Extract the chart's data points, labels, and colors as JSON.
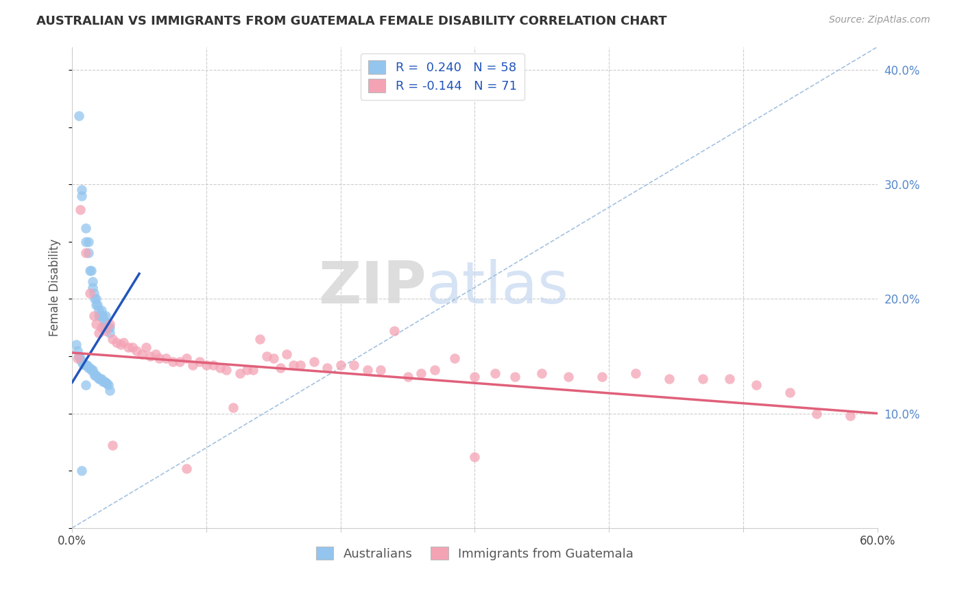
{
  "title": "AUSTRALIAN VS IMMIGRANTS FROM GUATEMALA FEMALE DISABILITY CORRELATION CHART",
  "source": "Source: ZipAtlas.com",
  "ylabel": "Female Disability",
  "watermark_zip": "ZIP",
  "watermark_atlas": "atlas",
  "xlim": [
    0.0,
    0.6
  ],
  "ylim": [
    0.0,
    0.42
  ],
  "blue_color": "#93C5EE",
  "pink_color": "#F4A3B5",
  "blue_line_color": "#2255BB",
  "pink_line_color": "#E0607A",
  "diagonal_color": "#99BBDD",
  "background_color": "#FFFFFF",
  "grid_color": "#CCCCCC",
  "r_blue": 0.24,
  "n_blue": 58,
  "r_pink": -0.144,
  "n_pink": 71,
  "australians_x": [
    0.005,
    0.007,
    0.007,
    0.01,
    0.01,
    0.012,
    0.012,
    0.013,
    0.014,
    0.015,
    0.015,
    0.016,
    0.017,
    0.018,
    0.018,
    0.019,
    0.02,
    0.02,
    0.021,
    0.022,
    0.022,
    0.023,
    0.024,
    0.024,
    0.025,
    0.025,
    0.026,
    0.027,
    0.028,
    0.028,
    0.003,
    0.004,
    0.005,
    0.006,
    0.007,
    0.008,
    0.009,
    0.01,
    0.011,
    0.012,
    0.013,
    0.014,
    0.015,
    0.016,
    0.017,
    0.018,
    0.019,
    0.02,
    0.021,
    0.022,
    0.023,
    0.024,
    0.025,
    0.026,
    0.027,
    0.028,
    0.007,
    0.01
  ],
  "australians_y": [
    0.36,
    0.295,
    0.29,
    0.262,
    0.25,
    0.25,
    0.24,
    0.225,
    0.225,
    0.215,
    0.21,
    0.205,
    0.2,
    0.2,
    0.195,
    0.195,
    0.19,
    0.185,
    0.185,
    0.19,
    0.185,
    0.185,
    0.18,
    0.175,
    0.185,
    0.18,
    0.175,
    0.175,
    0.175,
    0.17,
    0.16,
    0.155,
    0.15,
    0.148,
    0.145,
    0.143,
    0.143,
    0.142,
    0.142,
    0.14,
    0.14,
    0.138,
    0.138,
    0.135,
    0.133,
    0.133,
    0.132,
    0.13,
    0.13,
    0.13,
    0.128,
    0.128,
    0.127,
    0.126,
    0.125,
    0.12,
    0.05,
    0.125
  ],
  "guatemala_x": [
    0.004,
    0.006,
    0.01,
    0.013,
    0.016,
    0.018,
    0.02,
    0.022,
    0.025,
    0.028,
    0.03,
    0.033,
    0.036,
    0.038,
    0.042,
    0.045,
    0.048,
    0.052,
    0.055,
    0.058,
    0.062,
    0.065,
    0.07,
    0.075,
    0.08,
    0.085,
    0.09,
    0.095,
    0.1,
    0.105,
    0.11,
    0.115,
    0.12,
    0.125,
    0.13,
    0.135,
    0.14,
    0.145,
    0.15,
    0.155,
    0.16,
    0.165,
    0.17,
    0.18,
    0.19,
    0.2,
    0.21,
    0.22,
    0.23,
    0.24,
    0.25,
    0.26,
    0.27,
    0.285,
    0.3,
    0.315,
    0.33,
    0.35,
    0.37,
    0.395,
    0.42,
    0.445,
    0.47,
    0.49,
    0.51,
    0.535,
    0.555,
    0.03,
    0.085,
    0.3,
    0.58
  ],
  "guatemala_y": [
    0.148,
    0.278,
    0.24,
    0.205,
    0.185,
    0.178,
    0.17,
    0.175,
    0.172,
    0.178,
    0.165,
    0.162,
    0.16,
    0.162,
    0.158,
    0.158,
    0.155,
    0.152,
    0.158,
    0.15,
    0.152,
    0.148,
    0.148,
    0.145,
    0.145,
    0.148,
    0.142,
    0.145,
    0.142,
    0.142,
    0.14,
    0.138,
    0.105,
    0.135,
    0.138,
    0.138,
    0.165,
    0.15,
    0.148,
    0.14,
    0.152,
    0.142,
    0.142,
    0.145,
    0.14,
    0.142,
    0.142,
    0.138,
    0.138,
    0.172,
    0.132,
    0.135,
    0.138,
    0.148,
    0.132,
    0.135,
    0.132,
    0.135,
    0.132,
    0.132,
    0.135,
    0.13,
    0.13,
    0.13,
    0.125,
    0.118,
    0.1,
    0.072,
    0.052,
    0.062,
    0.098
  ],
  "blue_line_x": [
    0.0,
    0.05
  ],
  "blue_line_y": [
    0.127,
    0.222
  ],
  "pink_line_x": [
    0.0,
    0.6
  ],
  "pink_line_y": [
    0.153,
    0.1
  ]
}
